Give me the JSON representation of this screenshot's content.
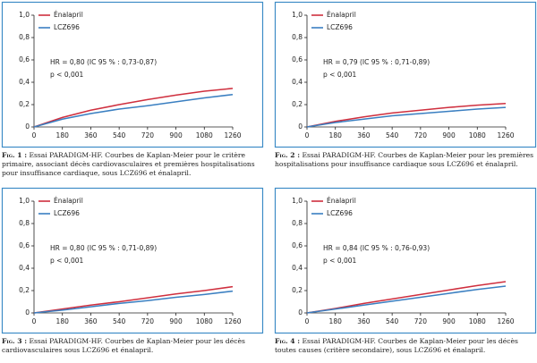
{
  "chart_data": [
    {
      "type": "line",
      "caption_label": "Fig. 1 :",
      "caption": "Essai PARADIGM-HF. Courbes de Kaplan-Meier pour le critère primaire, associant décès cardiovasculaires et premières hospitalisations pour insuffisance cardiaque, sous LCZ696 et énalapril.",
      "annotations": [
        "HR = 0,80 (IC 95 % : 0,73-0,87)",
        "p < 0,001"
      ],
      "x": [
        0,
        180,
        360,
        540,
        720,
        900,
        1080,
        1260
      ],
      "xlim": [
        0,
        1260
      ],
      "xticks": [
        0,
        180,
        360,
        540,
        720,
        900,
        1080,
        1260
      ],
      "ylim": [
        0,
        1
      ],
      "yticks": [
        0,
        {
          "value": 0.2,
          "label": "0,2"
        },
        {
          "value": 0.4,
          "label": "0,4"
        },
        {
          "value": 0.6,
          "label": "0,6"
        },
        {
          "value": 0.8,
          "label": "0,8"
        },
        {
          "value": 1,
          "label": "1,0"
        }
      ],
      "series": [
        {
          "name": "Énalapril",
          "color": "#cf2f3e",
          "values": [
            0,
            0.085,
            0.15,
            0.2,
            0.245,
            0.285,
            0.32,
            0.345
          ]
        },
        {
          "name": "LCZ696",
          "color": "#3a7fc1",
          "values": [
            0,
            0.07,
            0.12,
            0.16,
            0.19,
            0.225,
            0.26,
            0.29
          ]
        }
      ]
    },
    {
      "type": "line",
      "caption_label": "Fig. 2 :",
      "caption": "Essai PARADIGM-HF. Courbes de Kaplan-Meier pour les premières hospitalisations pour insuffisance cardiaque sous LCZ696 et énalapril.",
      "annotations": [
        "HR = 0,79 (IC 95 % : 0,71-0,89)",
        "p < 0,001"
      ],
      "x": [
        0,
        180,
        360,
        540,
        720,
        900,
        1080,
        1260
      ],
      "xlim": [
        0,
        1260
      ],
      "xticks": [
        0,
        180,
        360,
        540,
        720,
        900,
        1080,
        1260
      ],
      "ylim": [
        0,
        1
      ],
      "yticks": [
        0,
        {
          "value": 0.2,
          "label": "0,2"
        },
        {
          "value": 0.4,
          "label": "0,4"
        },
        {
          "value": 0.6,
          "label": "0,6"
        },
        {
          "value": 0.8,
          "label": "0,8"
        },
        {
          "value": 1,
          "label": "1,0"
        }
      ],
      "series": [
        {
          "name": "Énalapril",
          "color": "#cf2f3e",
          "values": [
            0,
            0.05,
            0.09,
            0.125,
            0.15,
            0.175,
            0.195,
            0.21
          ]
        },
        {
          "name": "LCZ696",
          "color": "#3a7fc1",
          "values": [
            0,
            0.04,
            0.07,
            0.1,
            0.12,
            0.14,
            0.16,
            0.175
          ]
        }
      ]
    },
    {
      "type": "line",
      "caption_label": "Fig. 3 :",
      "caption": "Essai PARADIGM-HF. Courbes de Kaplan-Meier pour les décès cardiovasculaires sous LCZ696 et énalapril.",
      "annotations": [
        "HR = 0,80 (IC 95 % : 0,71-0,89)",
        "p < 0,001"
      ],
      "x": [
        0,
        180,
        360,
        540,
        720,
        900,
        1080,
        1260
      ],
      "xlim": [
        0,
        1260
      ],
      "xticks": [
        0,
        180,
        360,
        540,
        720,
        900,
        1080,
        1260
      ],
      "ylim": [
        0,
        1
      ],
      "yticks": [
        0,
        {
          "value": 0.2,
          "label": "0,2"
        },
        {
          "value": 0.4,
          "label": "0,4"
        },
        {
          "value": 0.6,
          "label": "0,6"
        },
        {
          "value": 0.8,
          "label": "0,8"
        },
        {
          "value": 1,
          "label": "1,0"
        }
      ],
      "series": [
        {
          "name": "Énalapril",
          "color": "#cf2f3e",
          "values": [
            0,
            0.035,
            0.07,
            0.1,
            0.135,
            0.17,
            0.2,
            0.235
          ]
        },
        {
          "name": "LCZ696",
          "color": "#3a7fc1",
          "values": [
            0,
            0.025,
            0.055,
            0.085,
            0.11,
            0.14,
            0.165,
            0.195
          ]
        }
      ]
    },
    {
      "type": "line",
      "caption_label": "Fig. 4 :",
      "caption": "Essai PARADIGM-HF. Courbes de Kaplan-Meier pour les décès toutes causes (critère secondaire), sous LCZ696 et énalapril.",
      "annotations": [
        "HR = 0,84 (IC 95 % : 0,76-0,93)",
        "p < 0,001"
      ],
      "x": [
        0,
        180,
        360,
        540,
        720,
        900,
        1080,
        1260
      ],
      "xlim": [
        0,
        1260
      ],
      "xticks": [
        0,
        180,
        360,
        540,
        720,
        900,
        1080,
        1260
      ],
      "ylim": [
        0,
        1
      ],
      "yticks": [
        0,
        {
          "value": 0.2,
          "label": "0,2"
        },
        {
          "value": 0.4,
          "label": "0,4"
        },
        {
          "value": 0.6,
          "label": "0,6"
        },
        {
          "value": 0.8,
          "label": "0,8"
        },
        {
          "value": 1,
          "label": "1,0"
        }
      ],
      "series": [
        {
          "name": "Énalapril",
          "color": "#cf2f3e",
          "values": [
            0,
            0.04,
            0.085,
            0.125,
            0.165,
            0.205,
            0.245,
            0.28
          ]
        },
        {
          "name": "LCZ696",
          "color": "#3a7fc1",
          "values": [
            0,
            0.035,
            0.07,
            0.105,
            0.14,
            0.175,
            0.21,
            0.24
          ]
        }
      ]
    }
  ]
}
